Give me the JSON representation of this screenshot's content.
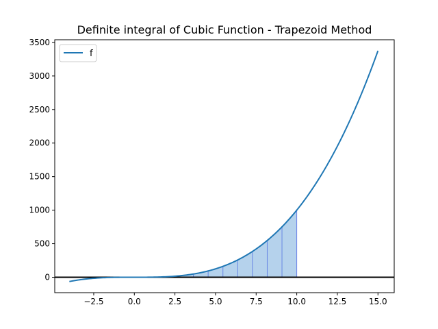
{
  "chart_data": {
    "type": "line",
    "title": "Definite integral of Cubic Function - Trapezoid Method",
    "xlabel": "",
    "ylabel": "",
    "xlim": [
      -4.9,
      16.0
    ],
    "ylim": [
      -230,
      3540
    ],
    "x_ticks": [
      -2.5,
      0.0,
      2.5,
      5.0,
      7.5,
      10.0,
      12.5,
      15.0
    ],
    "x_tick_labels": [
      "−2.5",
      "0.0",
      "2.5",
      "5.0",
      "7.5",
      "10.0",
      "12.5",
      "15.0"
    ],
    "y_ticks": [
      0,
      500,
      1000,
      1500,
      2000,
      2500,
      3000,
      3500
    ],
    "y_tick_labels": [
      "0",
      "500",
      "1000",
      "1500",
      "2000",
      "2500",
      "3000",
      "3500"
    ],
    "grid": false,
    "legend_position": "top-left",
    "series": [
      {
        "name": "f",
        "color": "#1f77b4",
        "x_range": [
          -4,
          15
        ],
        "function_values": [
          [
            -4,
            -64
          ],
          [
            -3,
            -27
          ],
          [
            -2,
            -8
          ],
          [
            -1,
            -1
          ],
          [
            0,
            0
          ],
          [
            1,
            1
          ],
          [
            2,
            8
          ],
          [
            3,
            27
          ],
          [
            4,
            64
          ],
          [
            5,
            125
          ],
          [
            6,
            216
          ],
          [
            7,
            343
          ],
          [
            8,
            512
          ],
          [
            9,
            729
          ],
          [
            10,
            1000
          ],
          [
            11,
            1331
          ],
          [
            12,
            1728
          ],
          [
            13,
            2197
          ],
          [
            14,
            2744
          ],
          [
            15,
            3375
          ]
        ]
      }
    ],
    "trapezoids": {
      "fill_color": "#5b9bd5",
      "edge_color": "#6a7fe8",
      "interval": [
        0,
        10
      ],
      "partition_x": [
        0.0,
        0.909,
        1.818,
        2.727,
        3.636,
        4.545,
        5.455,
        6.364,
        7.273,
        8.182,
        9.091,
        10.0
      ],
      "partition_y": [
        0.0,
        0.75,
        6.01,
        20.28,
        48.08,
        93.9,
        162.3,
        257.7,
        384.7,
        547.7,
        751.3,
        1000.0
      ]
    },
    "baseline": {
      "y": 0,
      "color": "#000000"
    }
  }
}
